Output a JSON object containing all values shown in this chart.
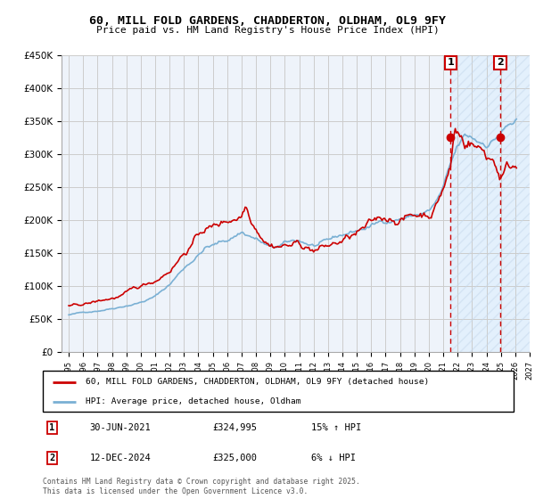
{
  "title": "60, MILL FOLD GARDENS, CHADDERTON, OLDHAM, OL9 9FY",
  "subtitle": "Price paid vs. HM Land Registry's House Price Index (HPI)",
  "ylabel_ticks": [
    "£0",
    "£50K",
    "£100K",
    "£150K",
    "£200K",
    "£250K",
    "£300K",
    "£350K",
    "£400K",
    "£450K"
  ],
  "ylim": [
    0,
    450000
  ],
  "xlim_start": 1994.5,
  "xlim_end": 2027.0,
  "background_color": "#ffffff",
  "grid_color": "#cccccc",
  "plot_bg_color": "#eef3fa",
  "hpi_line_color": "#7ab0d4",
  "price_line_color": "#cc0000",
  "marker1_date": "30-JUN-2021",
  "marker1_price": "£324,995",
  "marker1_pct": "15% ↑ HPI",
  "marker1_x": 2021.5,
  "marker1_y": 324995,
  "marker2_date": "12-DEC-2024",
  "marker2_price": "£325,000",
  "marker2_pct": "6% ↓ HPI",
  "marker2_x": 2024.95,
  "marker2_y": 325000,
  "legend_label1": "60, MILL FOLD GARDENS, CHADDERTON, OLDHAM, OL9 9FY (detached house)",
  "legend_label2": "HPI: Average price, detached house, Oldham",
  "footnote": "Contains HM Land Registry data © Crown copyright and database right 2025.\nThis data is licensed under the Open Government Licence v3.0.",
  "shaded_region_start": 2021.5,
  "shaded_region_end": 2027.0,
  "shade_color": "#ddeeff",
  "shade_hatch": "///",
  "shade_hatch_color": "#bbccdd"
}
